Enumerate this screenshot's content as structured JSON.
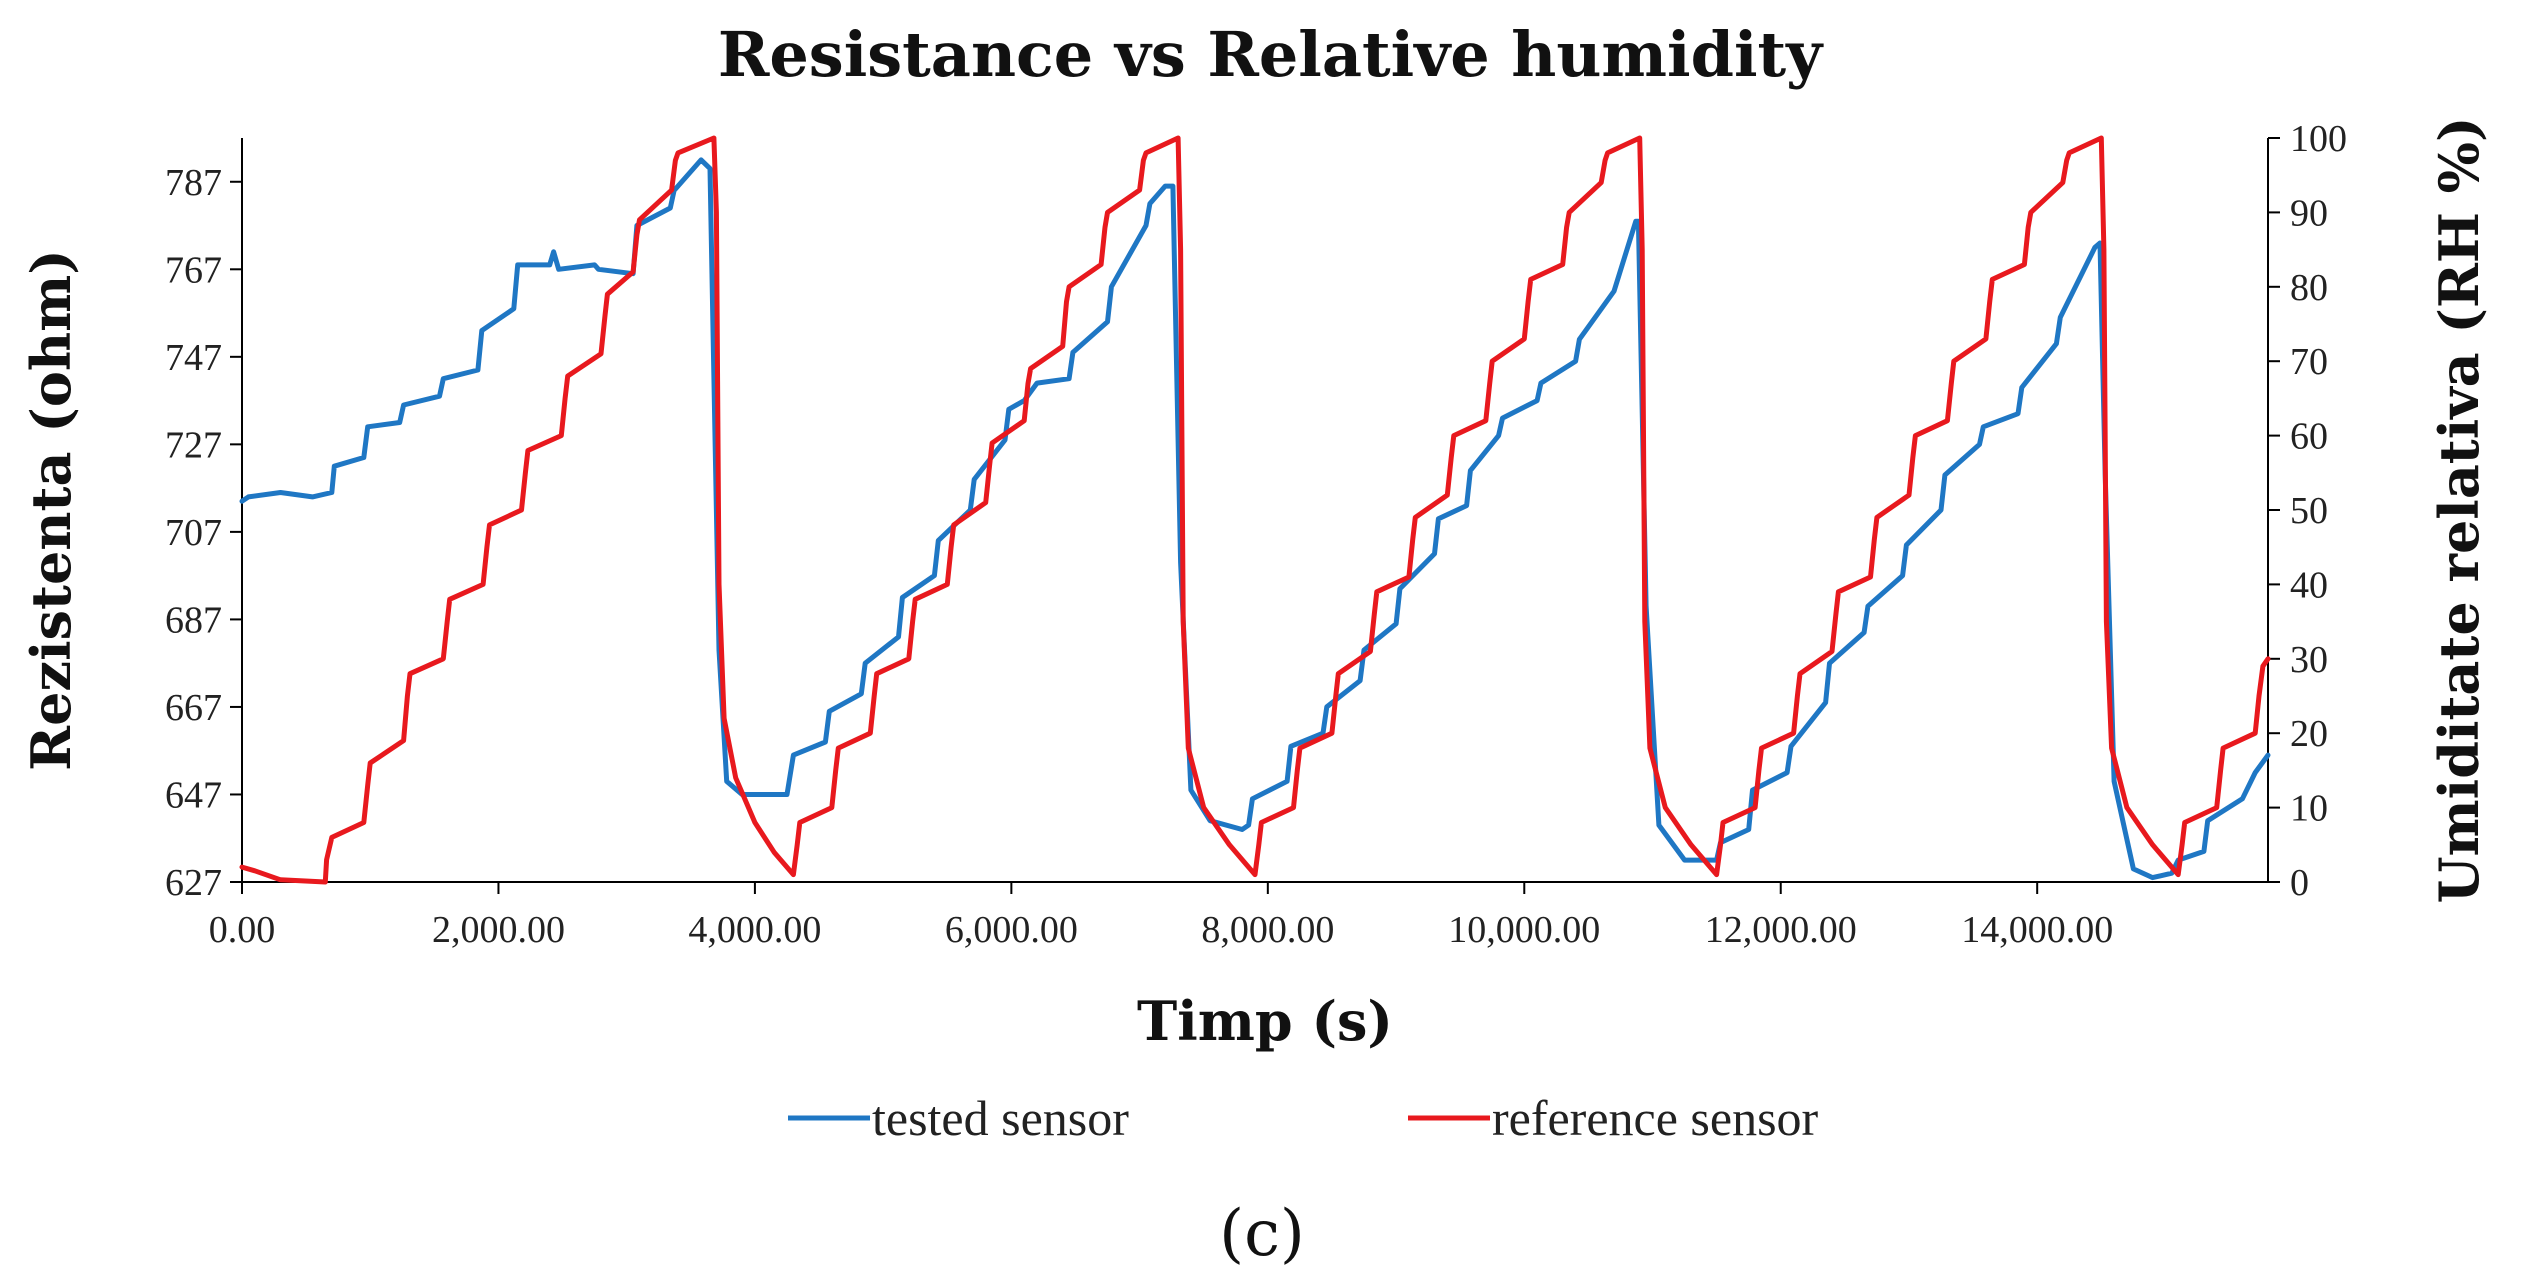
{
  "chart_data": {
    "type": "line",
    "title": "Resistance vs Relative humidity",
    "xlabel": "Timp (s)",
    "ylabel": "Rezistenta (ohm)",
    "y2label": "Umiditate relativa (RH %)",
    "caption": "(c)",
    "xlim": [
      0,
      15800
    ],
    "ylim": [
      627,
      797
    ],
    "y2lim": [
      0,
      100
    ],
    "x_ticks": [
      0,
      2000,
      4000,
      6000,
      8000,
      10000,
      12000,
      14000
    ],
    "x_tick_labels": [
      "0.00",
      "2,000.00",
      "4,000.00",
      "6,000.00",
      "8,000.00",
      "10,000.00",
      "12,000.00",
      "14,000.00"
    ],
    "y_ticks": [
      627,
      647,
      667,
      687,
      707,
      727,
      747,
      767,
      787
    ],
    "y_tick_labels": [
      "627",
      "647",
      "667",
      "687",
      "707",
      "727",
      "747",
      "767",
      "787"
    ],
    "y2_ticks": [
      0,
      10,
      20,
      30,
      40,
      50,
      60,
      70,
      80,
      90,
      100
    ],
    "y2_tick_labels": [
      "0",
      "10",
      "20",
      "30",
      "40",
      "50",
      "60",
      "70",
      "80",
      "90",
      "100"
    ],
    "legend_position": "bottom",
    "series": [
      {
        "name": "tested sensor",
        "axis": "left",
        "color": "#1f77c4",
        "points": [
          [
            0,
            714
          ],
          [
            50,
            715
          ],
          [
            300,
            716
          ],
          [
            550,
            715
          ],
          [
            700,
            716
          ],
          [
            720,
            722
          ],
          [
            950,
            724
          ],
          [
            980,
            731
          ],
          [
            1230,
            732
          ],
          [
            1260,
            736
          ],
          [
            1540,
            738
          ],
          [
            1570,
            742
          ],
          [
            1840,
            744
          ],
          [
            1870,
            753
          ],
          [
            2120,
            758
          ],
          [
            2150,
            768
          ],
          [
            2400,
            768
          ],
          [
            2430,
            771
          ],
          [
            2470,
            767
          ],
          [
            2750,
            768
          ],
          [
            2780,
            767
          ],
          [
            3050,
            766
          ],
          [
            3080,
            777
          ],
          [
            3340,
            781
          ],
          [
            3370,
            785
          ],
          [
            3580,
            792
          ],
          [
            3650,
            790
          ],
          [
            3720,
            680
          ],
          [
            3780,
            650
          ],
          [
            3900,
            647
          ],
          [
            4250,
            647
          ],
          [
            4300,
            656
          ],
          [
            4550,
            659
          ],
          [
            4580,
            666
          ],
          [
            4830,
            670
          ],
          [
            4860,
            677
          ],
          [
            5120,
            683
          ],
          [
            5150,
            692
          ],
          [
            5400,
            697
          ],
          [
            5430,
            705
          ],
          [
            5680,
            712
          ],
          [
            5710,
            719
          ],
          [
            5950,
            728
          ],
          [
            5980,
            735
          ],
          [
            6100,
            737
          ],
          [
            6200,
            741
          ],
          [
            6450,
            742
          ],
          [
            6480,
            748
          ],
          [
            6750,
            755
          ],
          [
            6780,
            763
          ],
          [
            7050,
            777
          ],
          [
            7080,
            782
          ],
          [
            7200,
            786
          ],
          [
            7260,
            786
          ],
          [
            7320,
            700
          ],
          [
            7400,
            648
          ],
          [
            7550,
            641
          ],
          [
            7800,
            639
          ],
          [
            7850,
            640
          ],
          [
            7880,
            646
          ],
          [
            8150,
            650
          ],
          [
            8180,
            658
          ],
          [
            8430,
            661
          ],
          [
            8460,
            667
          ],
          [
            8720,
            673
          ],
          [
            8750,
            680
          ],
          [
            9000,
            686
          ],
          [
            9030,
            694
          ],
          [
            9300,
            702
          ],
          [
            9330,
            710
          ],
          [
            9550,
            713
          ],
          [
            9580,
            721
          ],
          [
            9800,
            729
          ],
          [
            9830,
            733
          ],
          [
            10100,
            737
          ],
          [
            10130,
            741
          ],
          [
            10400,
            746
          ],
          [
            10430,
            751
          ],
          [
            10700,
            762
          ],
          [
            10870,
            778
          ],
          [
            10890,
            778
          ],
          [
            10950,
            690
          ],
          [
            11050,
            640
          ],
          [
            11250,
            632
          ],
          [
            11500,
            632
          ],
          [
            11530,
            636
          ],
          [
            11750,
            639
          ],
          [
            11780,
            648
          ],
          [
            12050,
            652
          ],
          [
            12080,
            658
          ],
          [
            12350,
            668
          ],
          [
            12380,
            677
          ],
          [
            12650,
            684
          ],
          [
            12680,
            690
          ],
          [
            12950,
            697
          ],
          [
            12980,
            704
          ],
          [
            13250,
            712
          ],
          [
            13280,
            720
          ],
          [
            13550,
            727
          ],
          [
            13580,
            731
          ],
          [
            13850,
            734
          ],
          [
            13880,
            740
          ],
          [
            14150,
            750
          ],
          [
            14180,
            756
          ],
          [
            14450,
            772
          ],
          [
            14490,
            773
          ],
          [
            14530,
            720
          ],
          [
            14600,
            650
          ],
          [
            14750,
            630
          ],
          [
            14900,
            628
          ],
          [
            15050,
            629
          ],
          [
            15100,
            632
          ],
          [
            15300,
            634
          ],
          [
            15330,
            641
          ],
          [
            15600,
            646
          ],
          [
            15700,
            652
          ],
          [
            15800,
            656
          ]
        ]
      },
      {
        "name": "reference sensor",
        "axis": "right",
        "color": "#e8191e",
        "points": [
          [
            0,
            2
          ],
          [
            100,
            1.5
          ],
          [
            300,
            0.3
          ],
          [
            650,
            0
          ],
          [
            660,
            3
          ],
          [
            700,
            6
          ],
          [
            950,
            8
          ],
          [
            980,
            13
          ],
          [
            1000,
            16
          ],
          [
            1260,
            19
          ],
          [
            1290,
            25
          ],
          [
            1310,
            28
          ],
          [
            1570,
            30
          ],
          [
            1600,
            35
          ],
          [
            1620,
            38
          ],
          [
            1880,
            40
          ],
          [
            1910,
            45
          ],
          [
            1930,
            48
          ],
          [
            2180,
            50
          ],
          [
            2210,
            55
          ],
          [
            2230,
            58
          ],
          [
            2490,
            60
          ],
          [
            2520,
            65
          ],
          [
            2540,
            68
          ],
          [
            2800,
            71
          ],
          [
            2830,
            76
          ],
          [
            2850,
            79
          ],
          [
            3050,
            82
          ],
          [
            3080,
            87
          ],
          [
            3100,
            89
          ],
          [
            3350,
            93
          ],
          [
            3380,
            97
          ],
          [
            3400,
            98
          ],
          [
            3680,
            100
          ],
          [
            3700,
            90
          ],
          [
            3720,
            40
          ],
          [
            3760,
            22
          ],
          [
            3850,
            14
          ],
          [
            4000,
            8
          ],
          [
            4150,
            4
          ],
          [
            4300,
            1
          ],
          [
            4330,
            5
          ],
          [
            4350,
            8
          ],
          [
            4600,
            10
          ],
          [
            4630,
            15
          ],
          [
            4650,
            18
          ],
          [
            4900,
            20
          ],
          [
            4930,
            25
          ],
          [
            4950,
            28
          ],
          [
            5200,
            30
          ],
          [
            5230,
            35
          ],
          [
            5250,
            38
          ],
          [
            5500,
            40
          ],
          [
            5530,
            45
          ],
          [
            5550,
            48
          ],
          [
            5800,
            51
          ],
          [
            5830,
            56
          ],
          [
            5850,
            59
          ],
          [
            6100,
            62
          ],
          [
            6130,
            67
          ],
          [
            6150,
            69
          ],
          [
            6400,
            72
          ],
          [
            6430,
            78
          ],
          [
            6450,
            80
          ],
          [
            6700,
            83
          ],
          [
            6730,
            88
          ],
          [
            6750,
            90
          ],
          [
            7000,
            93
          ],
          [
            7030,
            97
          ],
          [
            7050,
            98
          ],
          [
            7300,
            100
          ],
          [
            7320,
            85
          ],
          [
            7340,
            35
          ],
          [
            7380,
            18
          ],
          [
            7500,
            10
          ],
          [
            7700,
            5
          ],
          [
            7900,
            1
          ],
          [
            7930,
            5
          ],
          [
            7950,
            8
          ],
          [
            8200,
            10
          ],
          [
            8230,
            15
          ],
          [
            8250,
            18
          ],
          [
            8500,
            20
          ],
          [
            8530,
            25
          ],
          [
            8550,
            28
          ],
          [
            8800,
            31
          ],
          [
            8830,
            36
          ],
          [
            8850,
            39
          ],
          [
            9100,
            41
          ],
          [
            9130,
            46
          ],
          [
            9150,
            49
          ],
          [
            9400,
            52
          ],
          [
            9430,
            57
          ],
          [
            9450,
            60
          ],
          [
            9700,
            62
          ],
          [
            9730,
            67
          ],
          [
            9750,
            70
          ],
          [
            10000,
            73
          ],
          [
            10030,
            78
          ],
          [
            10050,
            81
          ],
          [
            10300,
            83
          ],
          [
            10330,
            88
          ],
          [
            10350,
            90
          ],
          [
            10600,
            94
          ],
          [
            10630,
            97
          ],
          [
            10650,
            98
          ],
          [
            10900,
            100
          ],
          [
            10920,
            85
          ],
          [
            10940,
            35
          ],
          [
            10980,
            18
          ],
          [
            11100,
            10
          ],
          [
            11300,
            5
          ],
          [
            11500,
            1
          ],
          [
            11530,
            5
          ],
          [
            11550,
            8
          ],
          [
            11800,
            10
          ],
          [
            11830,
            15
          ],
          [
            11850,
            18
          ],
          [
            12100,
            20
          ],
          [
            12130,
            25
          ],
          [
            12150,
            28
          ],
          [
            12400,
            31
          ],
          [
            12430,
            36
          ],
          [
            12450,
            39
          ],
          [
            12700,
            41
          ],
          [
            12730,
            46
          ],
          [
            12750,
            49
          ],
          [
            13000,
            52
          ],
          [
            13030,
            57
          ],
          [
            13050,
            60
          ],
          [
            13300,
            62
          ],
          [
            13330,
            67
          ],
          [
            13350,
            70
          ],
          [
            13600,
            73
          ],
          [
            13630,
            78
          ],
          [
            13650,
            81
          ],
          [
            13900,
            83
          ],
          [
            13930,
            88
          ],
          [
            13950,
            90
          ],
          [
            14200,
            94
          ],
          [
            14230,
            97
          ],
          [
            14250,
            98
          ],
          [
            14500,
            100
          ],
          [
            14520,
            85
          ],
          [
            14540,
            35
          ],
          [
            14580,
            18
          ],
          [
            14700,
            10
          ],
          [
            14900,
            5
          ],
          [
            15100,
            1
          ],
          [
            15130,
            5
          ],
          [
            15150,
            8
          ],
          [
            15400,
            10
          ],
          [
            15430,
            15
          ],
          [
            15450,
            18
          ],
          [
            15700,
            20
          ],
          [
            15730,
            25
          ],
          [
            15760,
            29
          ],
          [
            15800,
            30
          ]
        ]
      }
    ]
  }
}
